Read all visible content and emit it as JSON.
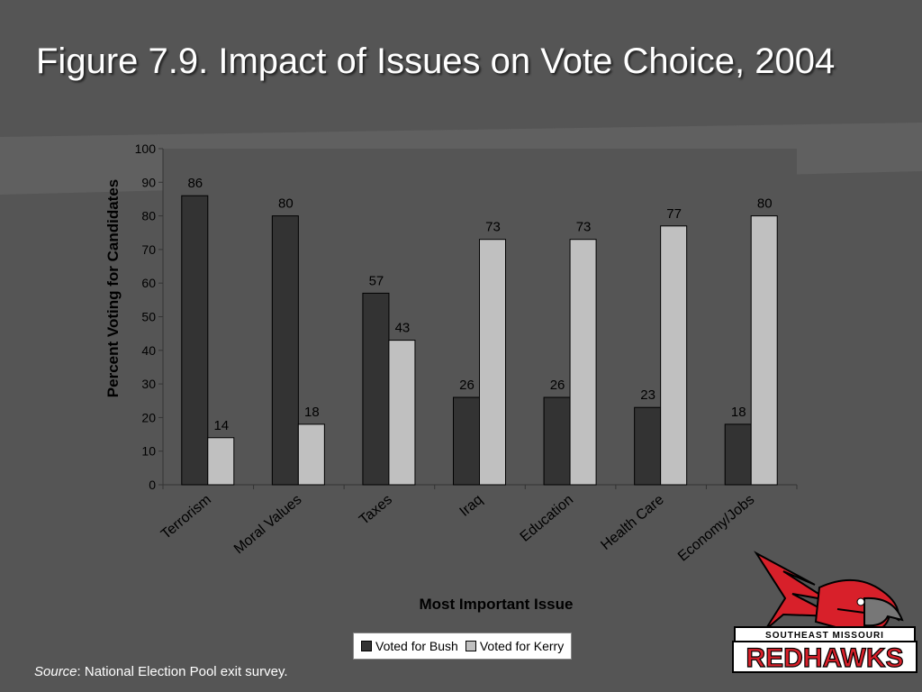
{
  "slide": {
    "title": "Figure 7.9. Impact of Issues on Vote Choice, 2004",
    "source_label": "Source",
    "source_text": ": National Election Pool exit survey.",
    "logo_text_top": "SOUTHEAST MISSOURI",
    "logo_text_main": "REDHAWKS"
  },
  "colors": {
    "background": "#555555",
    "bush": "#333333",
    "kerry": "#c0c0c0",
    "plot_bg": "#555555"
  },
  "chart_data": {
    "type": "bar",
    "title": "",
    "xlabel": "Most Important Issue",
    "ylabel": "Percent Voting for Candidates",
    "ylim": [
      0,
      100
    ],
    "yticks": [
      0,
      10,
      20,
      30,
      40,
      50,
      60,
      70,
      80,
      90,
      100
    ],
    "categories": [
      "Terrorism",
      "Moral Values",
      "Taxes",
      "Iraq",
      "Education",
      "Health Care",
      "Economy/Jobs"
    ],
    "series": [
      {
        "name": "Voted for Bush",
        "values": [
          86,
          80,
          57,
          26,
          26,
          23,
          18
        ]
      },
      {
        "name": "Voted for Kerry",
        "values": [
          14,
          18,
          43,
          73,
          73,
          77,
          80
        ]
      }
    ],
    "legend_position": "bottom",
    "grid": false,
    "data_labels": true
  }
}
